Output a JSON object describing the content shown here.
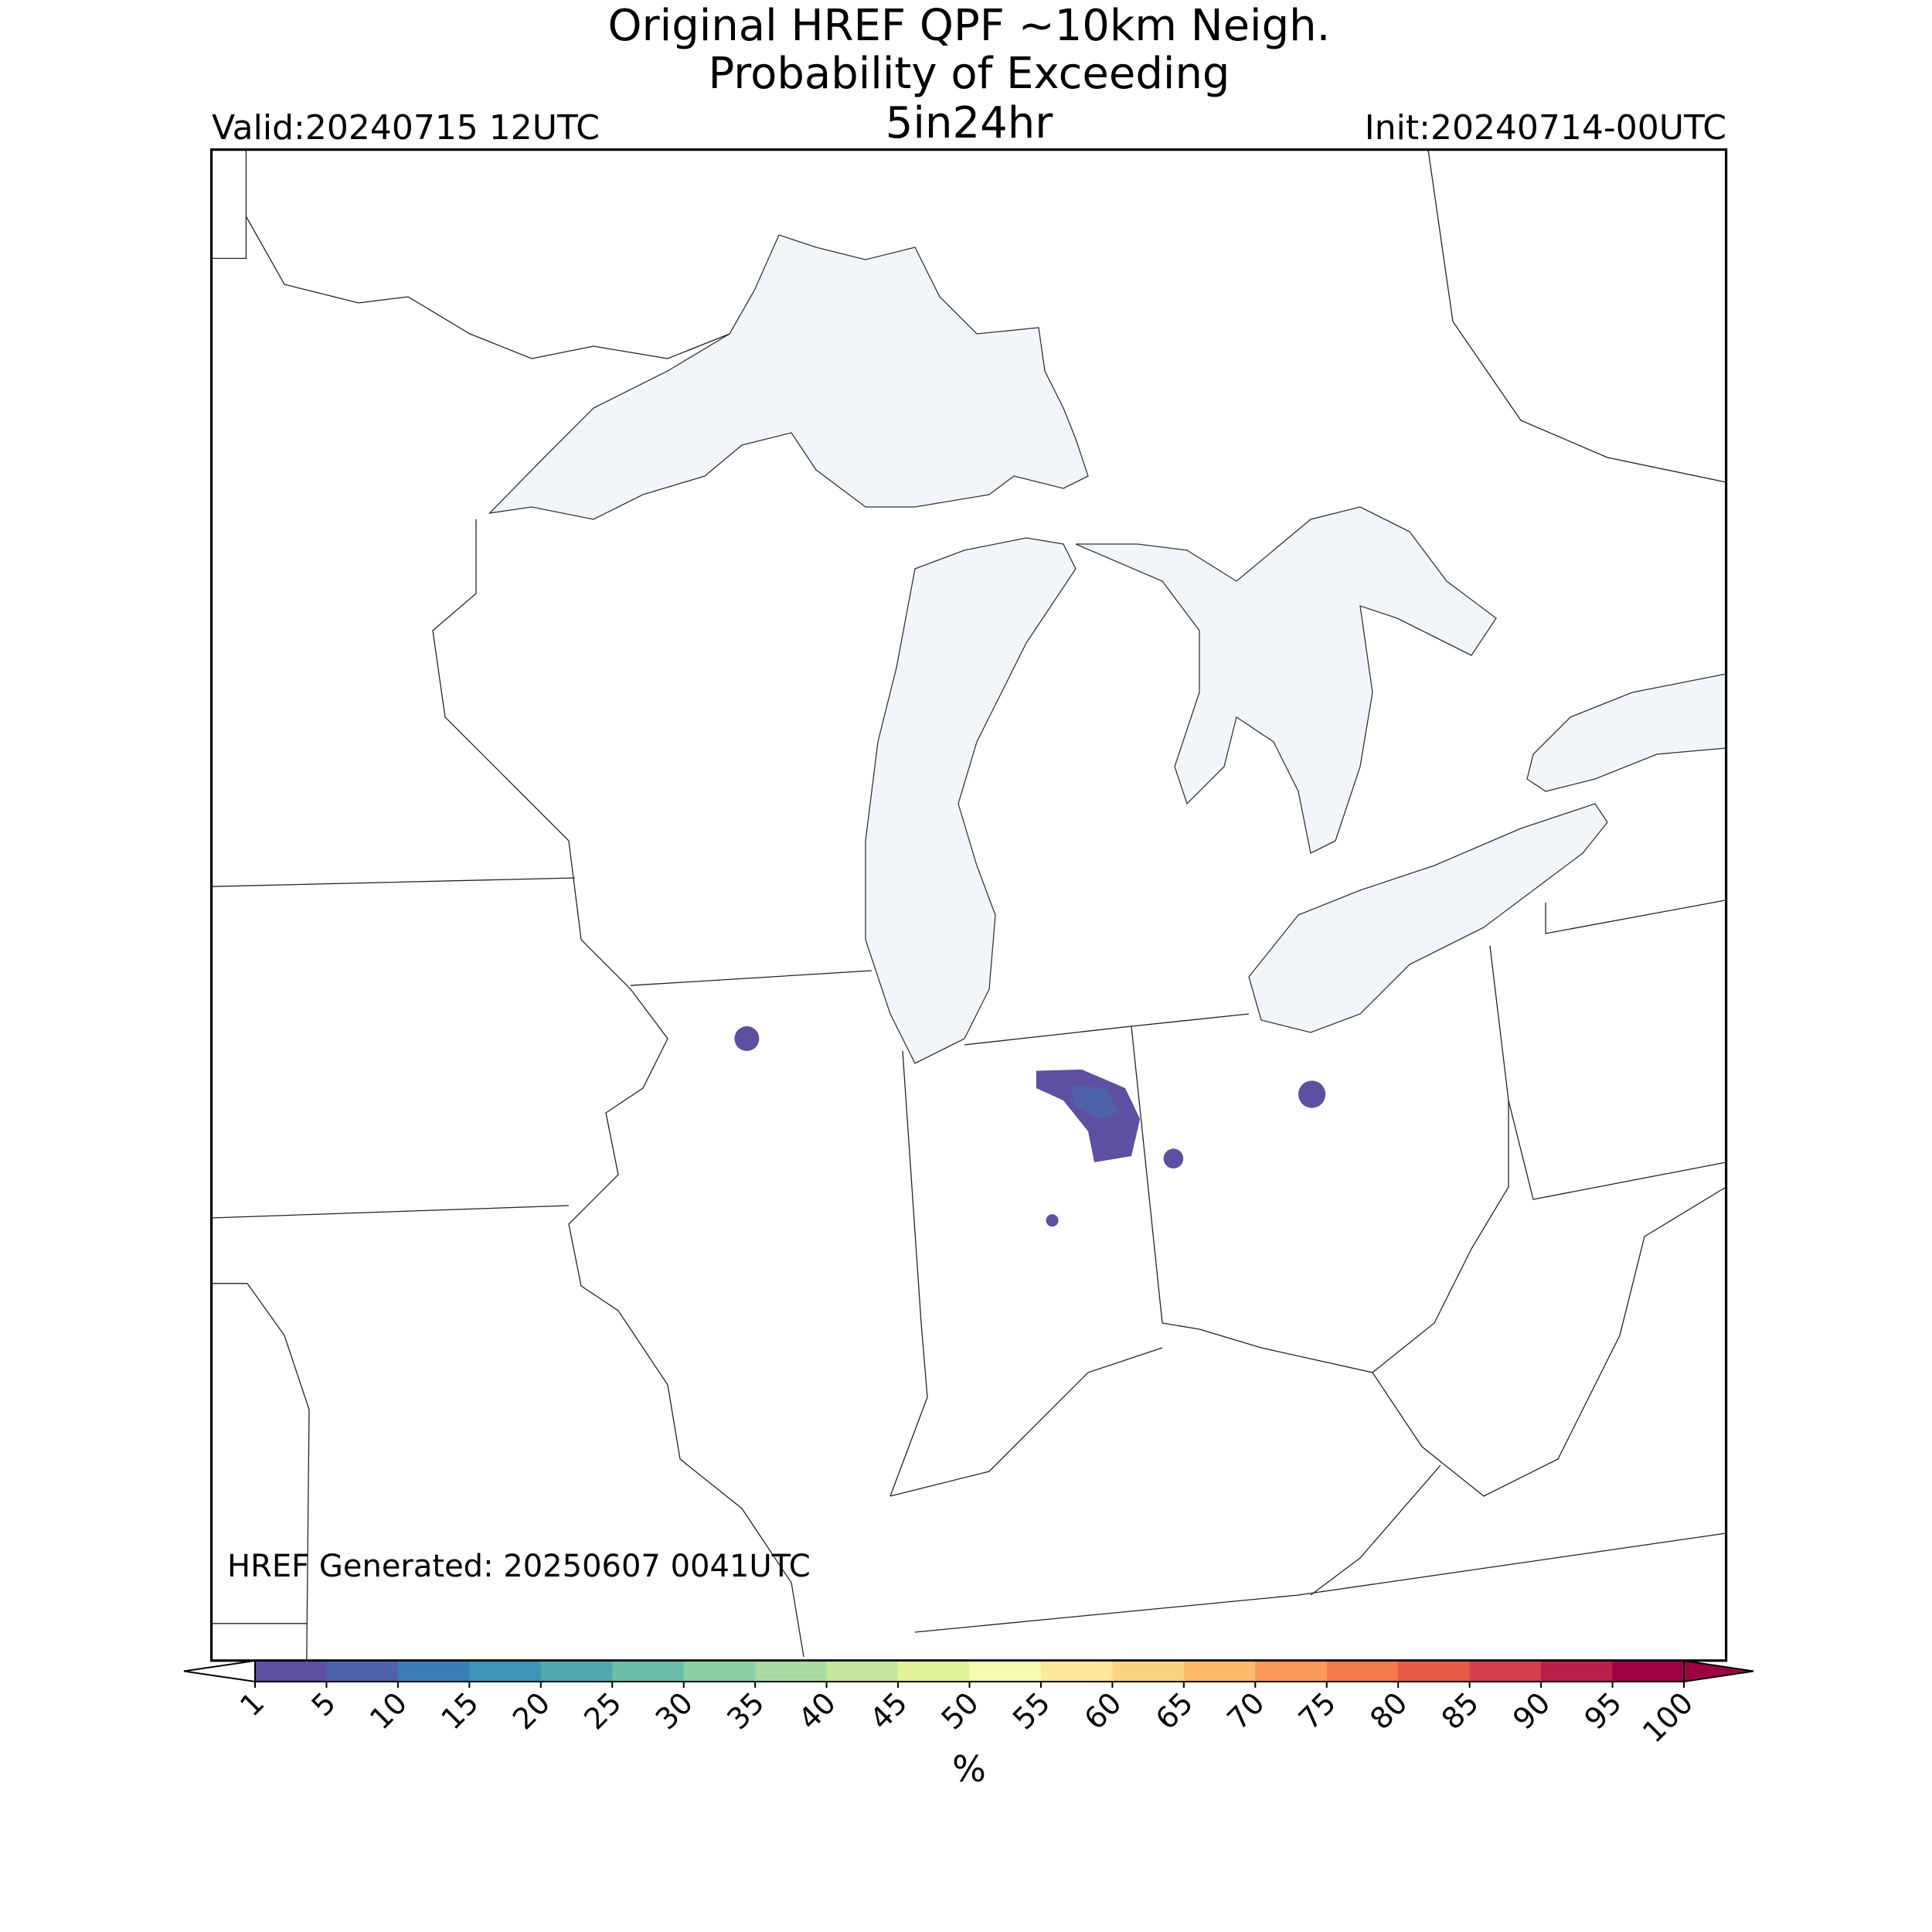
{
  "header": {
    "title_lines": [
      "Original HREF QPF ~10km Neigh.",
      "Probability of Exceeding",
      "5in24hr"
    ],
    "valid": "Valid:20240715 12UTC",
    "init": "Init:20240714-00UTC"
  },
  "footer_note": "HREF Generated: 20250607 0041UTC",
  "colorbar": {
    "ticks": [
      1,
      5,
      10,
      15,
      20,
      25,
      30,
      35,
      40,
      45,
      50,
      55,
      60,
      65,
      70,
      75,
      80,
      85,
      90,
      95,
      100
    ],
    "colors": [
      "#5e4fa2",
      "#4f61aa",
      "#3a7eb8",
      "#3d95b8",
      "#4fa9af",
      "#69bda9",
      "#89d0a4",
      "#a8dca2",
      "#c6e89e",
      "#e2f49a",
      "#f5fbb1",
      "#fee99a",
      "#fed380",
      "#fdba6b",
      "#fa9a57",
      "#f37a4a",
      "#e65a46",
      "#d33f4a",
      "#b91f48",
      "#9e0142"
    ],
    "under_color": "#ffffff",
    "over_color": "#9e0142",
    "label": "%"
  }
}
